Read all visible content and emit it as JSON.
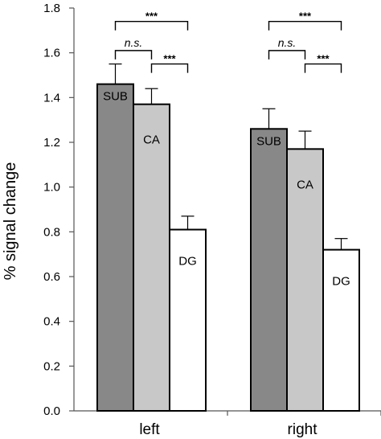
{
  "chart_data": {
    "type": "bar",
    "ylabel": "% signal change",
    "ylim": [
      0,
      1.8
    ],
    "yticks": [
      "0.0",
      "0.2",
      "0.4",
      "0.6",
      "0.8",
      "1.0",
      "1.2",
      "1.4",
      "1.6",
      "1.8"
    ],
    "categories": [
      "left",
      "right"
    ],
    "series": [
      {
        "name": "SUB",
        "values": [
          1.46,
          1.26
        ],
        "errors": [
          0.09,
          0.09
        ],
        "color": "#888888"
      },
      {
        "name": "CA",
        "values": [
          1.37,
          1.17
        ],
        "errors": [
          0.07,
          0.08
        ],
        "color": "#c8c8c8"
      },
      {
        "name": "DG",
        "values": [
          0.81,
          0.72
        ],
        "errors": [
          0.06,
          0.05
        ],
        "color": "#ffffff"
      }
    ],
    "significance": [
      {
        "group": "left",
        "from": "SUB",
        "to": "DG",
        "label": "***",
        "level": 1.74
      },
      {
        "group": "left",
        "from": "SUB",
        "to": "CA",
        "label": "n.s.",
        "level": 1.61
      },
      {
        "group": "left",
        "from": "CA",
        "to": "DG",
        "label": "***",
        "level": 1.55
      },
      {
        "group": "right",
        "from": "SUB",
        "to": "DG",
        "label": "***",
        "level": 1.74
      },
      {
        "group": "right",
        "from": "SUB",
        "to": "CA",
        "label": "n.s.",
        "level": 1.61
      },
      {
        "group": "right",
        "from": "CA",
        "to": "DG",
        "label": "***",
        "level": 1.55
      }
    ],
    "grid": false
  }
}
